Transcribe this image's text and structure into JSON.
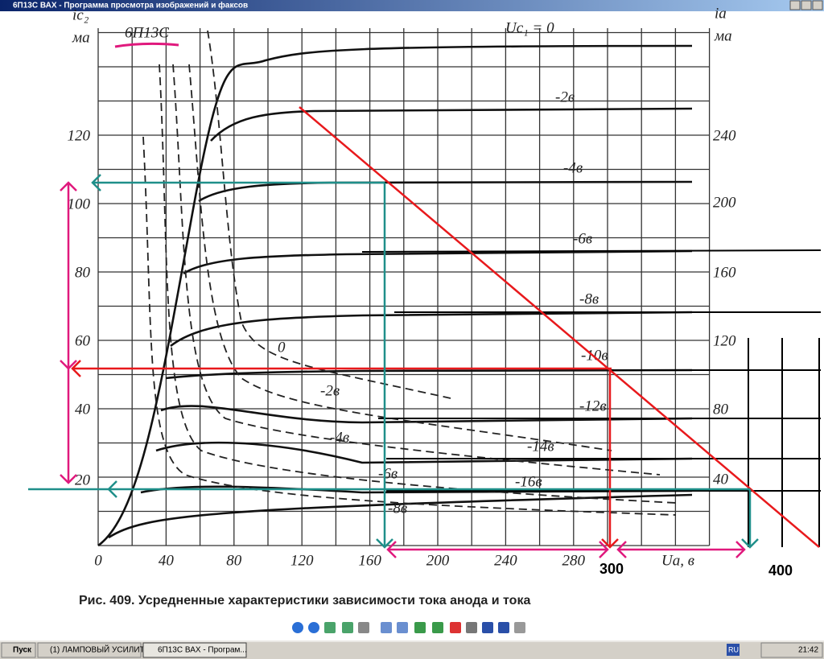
{
  "window": {
    "title": "6П13С ВАХ - Программа просмотра изображений и факсов"
  },
  "image": {
    "tube_label": "6П13С",
    "grid_label": "Uc₁ = 0",
    "left_axis": {
      "symbol": "ic₂",
      "unit": "мa",
      "ticks": [
        "120",
        "100",
        "80",
        "60",
        "40",
        "20"
      ]
    },
    "right_axis": {
      "symbol": "ia",
      "unit": "мa",
      "ticks": [
        "240",
        "200",
        "160",
        "120",
        "80",
        "40"
      ]
    },
    "x_axis": {
      "ticks": [
        "0",
        "40",
        "80",
        "120",
        "160",
        "200",
        "240",
        "280"
      ],
      "label": "Ua, в"
    },
    "solid_labels": [
      "-2в",
      "-4в",
      "-6в",
      "-8в",
      "-10в",
      "-12в",
      "-14в",
      "-16в"
    ],
    "dashed_labels": [
      "0",
      "-2в",
      "-4в",
      "-6в",
      "-8в"
    ],
    "annotations": [
      "300",
      "400"
    ],
    "caption": "Рис. 409. Усредненные характеристики зависимости тока анода и тока"
  },
  "taskbar": {
    "start": "Пуск",
    "tasks": [
      "(1) ЛАМПОВЫЙ УСИЛИТ...",
      "6П13С ВАХ - Програм..."
    ],
    "language": "RU",
    "clock": "21:42"
  }
}
